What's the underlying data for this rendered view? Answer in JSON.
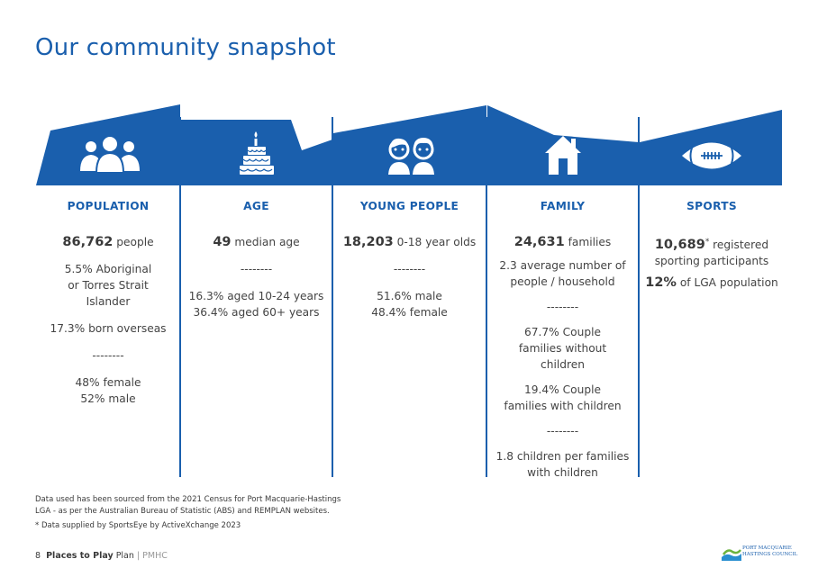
{
  "title": "Our community snapshot",
  "colors": {
    "accent": "#1a5fad",
    "text": "#444444"
  },
  "columns": [
    {
      "id": "population",
      "icon": "people-icon",
      "heading": "POPULATION",
      "lines": [
        {
          "big": "86,762",
          "text": " people"
        },
        {
          "text": "5.5% Aboriginal or Torres Strait Islander"
        },
        {
          "text": "17.3% born overseas"
        },
        {
          "text": "--------"
        },
        {
          "text": "48% female"
        },
        {
          "text": "52% male"
        }
      ]
    },
    {
      "id": "age",
      "icon": "birthday-cake-icon",
      "heading": "AGE",
      "lines": [
        {
          "big": "49",
          "text": " median age"
        },
        {
          "text": "--------"
        },
        {
          "text": "16.3% aged 10-24 years"
        },
        {
          "text": "36.4% aged 60+ years"
        }
      ]
    },
    {
      "id": "young-people",
      "icon": "children-icon",
      "heading": "YOUNG PEOPLE",
      "lines": [
        {
          "big": "18,203",
          "text": " 0-18 year olds"
        },
        {
          "text": "--------"
        },
        {
          "text": "51.6% male"
        },
        {
          "text": "48.4% female"
        }
      ]
    },
    {
      "id": "family",
      "icon": "house-icon",
      "heading": "FAMILY",
      "lines": [
        {
          "big": "24,631",
          "text": " families"
        },
        {
          "text": "2.3 average number of people / household"
        },
        {
          "text": "--------"
        },
        {
          "text": "67.7% Couple families without children"
        },
        {
          "text": "19.4% Couple families with children"
        },
        {
          "text": "--------"
        },
        {
          "text": "1.8 children per families with children"
        }
      ]
    },
    {
      "id": "sports",
      "icon": "football-icon",
      "heading": "SPORTS",
      "lines": [
        {
          "big": "10,689",
          "sup": "*",
          "text": " registered sporting participants"
        },
        {
          "big": "12%",
          "text": " of LGA population"
        }
      ]
    }
  ],
  "footnotes": {
    "source": "Data used has been sourced from the 2021 Census for Port Macquarie-Hastings LGA - as per the Australian Bureau of Statistic (ABS) and REMPLAN websites.",
    "sports": "* Data supplied by SportsEye by ActiveXchange 2023"
  },
  "footer": {
    "page": "8",
    "doc_bold": "Places to Play",
    "doc_rest": " Plan",
    "sep": " | ",
    "org": "PMHC"
  },
  "logo": {
    "line1": "PORT MACQUARIE",
    "line2": "HASTINGS COUNCIL"
  }
}
